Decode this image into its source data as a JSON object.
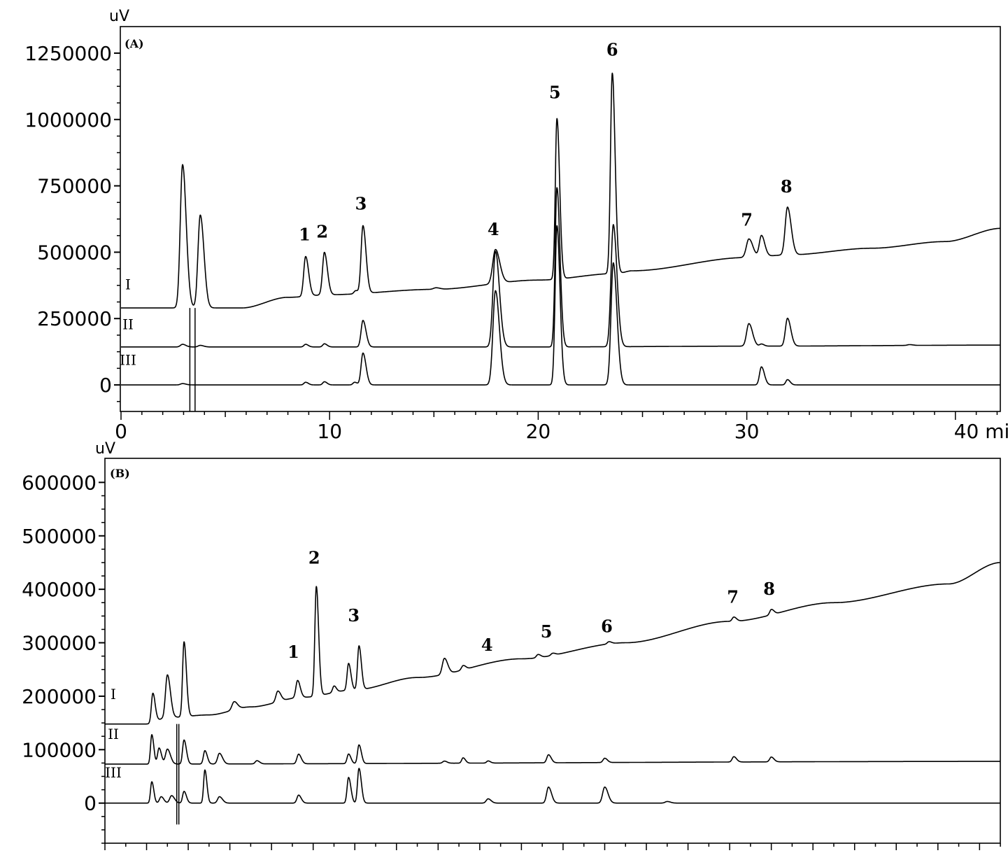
{
  "chart_data": [
    {
      "type": "line",
      "panel_label": "(A)",
      "unit_label": "uV",
      "y_ticks": [
        "1250000",
        "1000000",
        "750000",
        "500000",
        "250000",
        "0"
      ],
      "x_ticks": [
        "0",
        "10",
        "20",
        "30",
        "40 mi"
      ],
      "xlim": [
        0,
        42.2
      ],
      "ylim": [
        -100000,
        1350000
      ],
      "series": [
        {
          "name": "I",
          "baseline_points": [
            [
              0,
              290000
            ],
            [
              2.9,
              290000
            ],
            [
              3.9,
              290000
            ],
            [
              5.8,
              290000
            ],
            [
              8.0,
              330000
            ],
            [
              10,
              340000
            ],
            [
              15,
              360000
            ],
            [
              20,
              395000
            ],
            [
              23.8,
              420000
            ],
            [
              24.5,
              430000
            ],
            [
              30,
              480000
            ],
            [
              32,
              490000
            ],
            [
              36,
              515000
            ],
            [
              39.5,
              540000
            ],
            [
              42.2,
              590000
            ]
          ],
          "peaks": [
            {
              "x": 2.95,
              "y": 540000,
              "w": 0.11
            },
            {
              "x": 3.8,
              "y": 350000,
              "w": 0.11
            },
            {
              "x": 8.85,
              "y": 150000,
              "w": 0.09
            },
            {
              "x": 9.75,
              "y": 160000,
              "w": 0.09
            },
            {
              "x": 11.25,
              "y": 12000,
              "w": 0.08
            },
            {
              "x": 11.6,
              "y": 255000,
              "w": 0.09
            },
            {
              "x": 15.1,
              "y": 6000,
              "w": 0.12
            },
            {
              "x": 17.95,
              "y": 128000,
              "w": 0.13
            },
            {
              "x": 20.9,
              "y": 605000,
              "w": 0.08
            },
            {
              "x": 23.55,
              "y": 755000,
              "w": 0.085
            },
            {
              "x": 30.1,
              "y": 70000,
              "w": 0.12
            },
            {
              "x": 30.7,
              "y": 80000,
              "w": 0.1
            },
            {
              "x": 31.95,
              "y": 180000,
              "w": 0.11
            }
          ]
        },
        {
          "name": "II",
          "baseline_points": [
            [
              0,
              143000
            ],
            [
              20,
              143000
            ],
            [
              30,
              146000
            ],
            [
              42.2,
              150000
            ]
          ],
          "peaks": [
            {
              "x": 2.95,
              "y": 10000,
              "w": 0.1
            },
            {
              "x": 3.8,
              "y": 6000,
              "w": 0.1
            },
            {
              "x": 8.85,
              "y": 10000,
              "w": 0.08
            },
            {
              "x": 9.75,
              "y": 12000,
              "w": 0.08
            },
            {
              "x": 11.6,
              "y": 100000,
              "w": 0.09
            },
            {
              "x": 17.95,
              "y": 360000,
              "w": 0.12
            },
            {
              "x": 20.9,
              "y": 600000,
              "w": 0.09
            },
            {
              "x": 23.6,
              "y": 460000,
              "w": 0.11
            },
            {
              "x": 30.1,
              "y": 85000,
              "w": 0.11
            },
            {
              "x": 30.7,
              "y": 8000,
              "w": 0.08
            },
            {
              "x": 31.95,
              "y": 105000,
              "w": 0.1
            },
            {
              "x": 37.8,
              "y": 3000,
              "w": 0.1
            }
          ]
        },
        {
          "name": "III",
          "baseline_points": [
            [
              0,
              0
            ],
            [
              42.2,
              0
            ]
          ],
          "peaks": [
            {
              "x": 2.95,
              "y": 5000,
              "w": 0.1
            },
            {
              "x": 8.85,
              "y": 10000,
              "w": 0.08
            },
            {
              "x": 9.75,
              "y": 12000,
              "w": 0.08
            },
            {
              "x": 11.2,
              "y": 10000,
              "w": 0.08
            },
            {
              "x": 11.6,
              "y": 120000,
              "w": 0.09
            },
            {
              "x": 17.95,
              "y": 355000,
              "w": 0.12
            },
            {
              "x": 20.9,
              "y": 600000,
              "w": 0.09
            },
            {
              "x": 23.6,
              "y": 460000,
              "w": 0.11
            },
            {
              "x": 30.7,
              "y": 68000,
              "w": 0.09
            },
            {
              "x": 31.95,
              "y": 20000,
              "w": 0.08
            }
          ]
        }
      ],
      "solvent_dip": {
        "x1": 3.3,
        "x2": 3.55,
        "y_min": -100000
      },
      "peak_labels": [
        {
          "label": "1",
          "x": 8.8,
          "y": 545000
        },
        {
          "label": "2",
          "x": 9.65,
          "y": 555000
        },
        {
          "label": "3",
          "x": 11.5,
          "y": 660000
        },
        {
          "label": "4",
          "x": 17.85,
          "y": 565000
        },
        {
          "label": "5",
          "x": 20.8,
          "y": 1080000
        },
        {
          "label": "6",
          "x": 23.55,
          "y": 1240000
        },
        {
          "label": "7",
          "x": 30.0,
          "y": 600000
        },
        {
          "label": "8",
          "x": 31.9,
          "y": 725000
        }
      ],
      "trace_labels": [
        {
          "label": "I",
          "y": 360000
        },
        {
          "label": "II",
          "y": 210000
        },
        {
          "label": "III",
          "y": 75000
        }
      ]
    },
    {
      "type": "line",
      "panel_label": "(B)",
      "unit_label": "uV",
      "y_ticks": [
        "600000",
        "500000",
        "400000",
        "300000",
        "200000",
        "100000",
        "0"
      ],
      "x_ticks": [],
      "xlim": [
        0,
        43
      ],
      "ylim": [
        -75000,
        645000
      ],
      "series": [
        {
          "name": "I",
          "baseline_points": [
            [
              0,
              148000
            ],
            [
              2.0,
              148000
            ],
            [
              3.0,
              160000
            ],
            [
              5,
              165000
            ],
            [
              7,
              180000
            ],
            [
              9.5,
              198000
            ],
            [
              12,
              212000
            ],
            [
              15,
              235000
            ],
            [
              20,
              270000
            ],
            [
              25,
              300000
            ],
            [
              30,
              340000
            ],
            [
              35,
              375000
            ],
            [
              40.5,
              410000
            ],
            [
              43,
              450000
            ]
          ],
          "peaks": [
            {
              "x": 2.3,
              "y": 55000,
              "w": 0.07
            },
            {
              "x": 3.0,
              "y": 80000,
              "w": 0.09
            },
            {
              "x": 3.8,
              "y": 140000,
              "w": 0.07
            },
            {
              "x": 6.2,
              "y": 15000,
              "w": 0.1
            },
            {
              "x": 8.3,
              "y": 20000,
              "w": 0.09
            },
            {
              "x": 9.25,
              "y": 32000,
              "w": 0.08
            },
            {
              "x": 10.15,
              "y": 205000,
              "w": 0.07
            },
            {
              "x": 11.0,
              "y": 12000,
              "w": 0.07
            },
            {
              "x": 11.7,
              "y": 50000,
              "w": 0.07
            },
            {
              "x": 12.2,
              "y": 82000,
              "w": 0.07
            },
            {
              "x": 16.3,
              "y": 30000,
              "w": 0.1
            },
            {
              "x": 17.2,
              "y": 8000,
              "w": 0.08
            },
            {
              "x": 20.8,
              "y": 6000,
              "w": 0.08
            },
            {
              "x": 21.5,
              "y": 4000,
              "w": 0.08
            },
            {
              "x": 24.2,
              "y": 4000,
              "w": 0.08
            },
            {
              "x": 30.2,
              "y": 8000,
              "w": 0.08
            },
            {
              "x": 32.0,
              "y": 10000,
              "w": 0.08
            }
          ]
        },
        {
          "name": "II",
          "baseline_points": [
            [
              0,
              73000
            ],
            [
              43,
              78000
            ]
          ],
          "peaks": [
            {
              "x": 2.25,
              "y": 55000,
              "w": 0.06
            },
            {
              "x": 2.6,
              "y": 30000,
              "w": 0.07
            },
            {
              "x": 3.0,
              "y": 28000,
              "w": 0.09
            },
            {
              "x": 3.8,
              "y": 45000,
              "w": 0.07
            },
            {
              "x": 4.8,
              "y": 25000,
              "w": 0.07
            },
            {
              "x": 5.5,
              "y": 20000,
              "w": 0.09
            },
            {
              "x": 7.3,
              "y": 6000,
              "w": 0.08
            },
            {
              "x": 9.3,
              "y": 18000,
              "w": 0.08
            },
            {
              "x": 11.7,
              "y": 18000,
              "w": 0.07
            },
            {
              "x": 12.2,
              "y": 35000,
              "w": 0.07
            },
            {
              "x": 16.3,
              "y": 4000,
              "w": 0.08
            },
            {
              "x": 17.2,
              "y": 10000,
              "w": 0.07
            },
            {
              "x": 18.4,
              "y": 4000,
              "w": 0.07
            },
            {
              "x": 21.3,
              "y": 15000,
              "w": 0.08
            },
            {
              "x": 24.0,
              "y": 8000,
              "w": 0.08
            },
            {
              "x": 30.2,
              "y": 10000,
              "w": 0.08
            },
            {
              "x": 32.0,
              "y": 9000,
              "w": 0.08
            }
          ]
        },
        {
          "name": "III",
          "baseline_points": [
            [
              0,
              0
            ],
            [
              43,
              0
            ]
          ],
          "peaks": [
            {
              "x": 2.25,
              "y": 40000,
              "w": 0.06
            },
            {
              "x": 2.7,
              "y": 12000,
              "w": 0.08
            },
            {
              "x": 3.2,
              "y": 14000,
              "w": 0.09
            },
            {
              "x": 3.8,
              "y": 22000,
              "w": 0.07
            },
            {
              "x": 4.8,
              "y": 62000,
              "w": 0.06
            },
            {
              "x": 5.5,
              "y": 12000,
              "w": 0.09
            },
            {
              "x": 9.3,
              "y": 15000,
              "w": 0.08
            },
            {
              "x": 11.7,
              "y": 48000,
              "w": 0.07
            },
            {
              "x": 12.2,
              "y": 65000,
              "w": 0.07
            },
            {
              "x": 18.4,
              "y": 8000,
              "w": 0.09
            },
            {
              "x": 21.3,
              "y": 30000,
              "w": 0.09
            },
            {
              "x": 24.0,
              "y": 30000,
              "w": 0.1
            },
            {
              "x": 27.0,
              "y": 3000,
              "w": 0.1
            }
          ]
        }
      ],
      "solvent_dip": {
        "x1": 3.45,
        "x2": 3.55,
        "y_min": -40000
      },
      "peak_labels": [
        {
          "label": "1",
          "x": 9.05,
          "y": 272000
        },
        {
          "label": "2",
          "x": 10.05,
          "y": 448000
        },
        {
          "label": "3",
          "x": 11.95,
          "y": 340000
        },
        {
          "label": "4",
          "x": 18.35,
          "y": 285000
        },
        {
          "label": "5",
          "x": 21.2,
          "y": 310000
        },
        {
          "label": "6",
          "x": 24.1,
          "y": 320000
        },
        {
          "label": "7",
          "x": 30.15,
          "y": 375000
        },
        {
          "label": "8",
          "x": 31.9,
          "y": 390000
        }
      ],
      "trace_labels": [
        {
          "label": "I",
          "y": 195000
        },
        {
          "label": "II",
          "y": 120000
        },
        {
          "label": "III",
          "y": 48000
        }
      ]
    }
  ]
}
